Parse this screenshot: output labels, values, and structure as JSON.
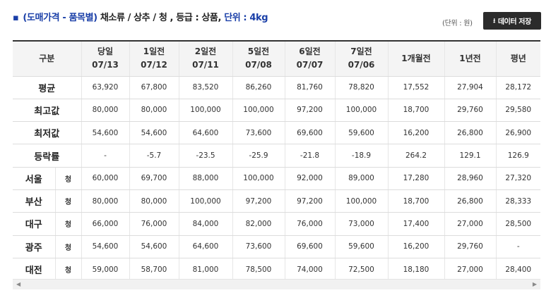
{
  "header": {
    "title_prefix": "(도매가격 - 품목별)",
    "category": "채소류 / 상추 / 청 ,",
    "grade": "등급 : 상품,",
    "unit_label": "단위 : 4kg"
  },
  "unit_note": "(단위 : 원)",
  "save_button": "데이터 저장",
  "columns": [
    {
      "l1": "구분",
      "l2": ""
    },
    {
      "l1": "당일",
      "l2": "07/13"
    },
    {
      "l1": "1일전",
      "l2": "07/12"
    },
    {
      "l1": "2일전",
      "l2": "07/11"
    },
    {
      "l1": "5일전",
      "l2": "07/08"
    },
    {
      "l1": "6일전",
      "l2": "07/07"
    },
    {
      "l1": "7일전",
      "l2": "07/06"
    },
    {
      "l1": "1개월전",
      "l2": ""
    },
    {
      "l1": "1년전",
      "l2": ""
    },
    {
      "l1": "평년",
      "l2": ""
    }
  ],
  "summary_rows": [
    {
      "name": "평균",
      "values": [
        "63,920",
        "67,800",
        "83,520",
        "86,260",
        "81,760",
        "78,820",
        "17,552",
        "27,904",
        "28,172"
      ]
    },
    {
      "name": "최고값",
      "values": [
        "80,000",
        "80,000",
        "100,000",
        "100,000",
        "97,200",
        "100,000",
        "18,700",
        "29,760",
        "29,580"
      ]
    },
    {
      "name": "최저값",
      "values": [
        "54,600",
        "54,600",
        "64,600",
        "73,600",
        "69,600",
        "59,600",
        "16,200",
        "26,800",
        "26,900"
      ]
    },
    {
      "name": "등락률",
      "values": [
        "-",
        "-5.7",
        "-23.5",
        "-25.9",
        "-21.8",
        "-18.9",
        "264.2",
        "129.1",
        "126.9"
      ]
    }
  ],
  "city_rows": [
    {
      "city": "서울",
      "grade": "청",
      "values": [
        "60,000",
        "69,700",
        "88,000",
        "100,000",
        "92,000",
        "89,000",
        "17,280",
        "28,960",
        "27,320"
      ]
    },
    {
      "city": "부산",
      "grade": "청",
      "values": [
        "80,000",
        "80,000",
        "100,000",
        "97,200",
        "97,200",
        "100,000",
        "18,700",
        "26,800",
        "28,333"
      ]
    },
    {
      "city": "대구",
      "grade": "청",
      "values": [
        "66,000",
        "76,000",
        "84,000",
        "82,000",
        "76,000",
        "73,000",
        "17,400",
        "27,000",
        "28,500"
      ]
    },
    {
      "city": "광주",
      "grade": "청",
      "values": [
        "54,600",
        "54,600",
        "64,600",
        "73,600",
        "69,600",
        "59,600",
        "16,200",
        "29,760",
        "-"
      ]
    },
    {
      "city": "대전",
      "grade": "청",
      "values": [
        "59,000",
        "58,700",
        "81,000",
        "78,500",
        "74,000",
        "72,500",
        "18,180",
        "27,000",
        "28,400"
      ]
    }
  ]
}
